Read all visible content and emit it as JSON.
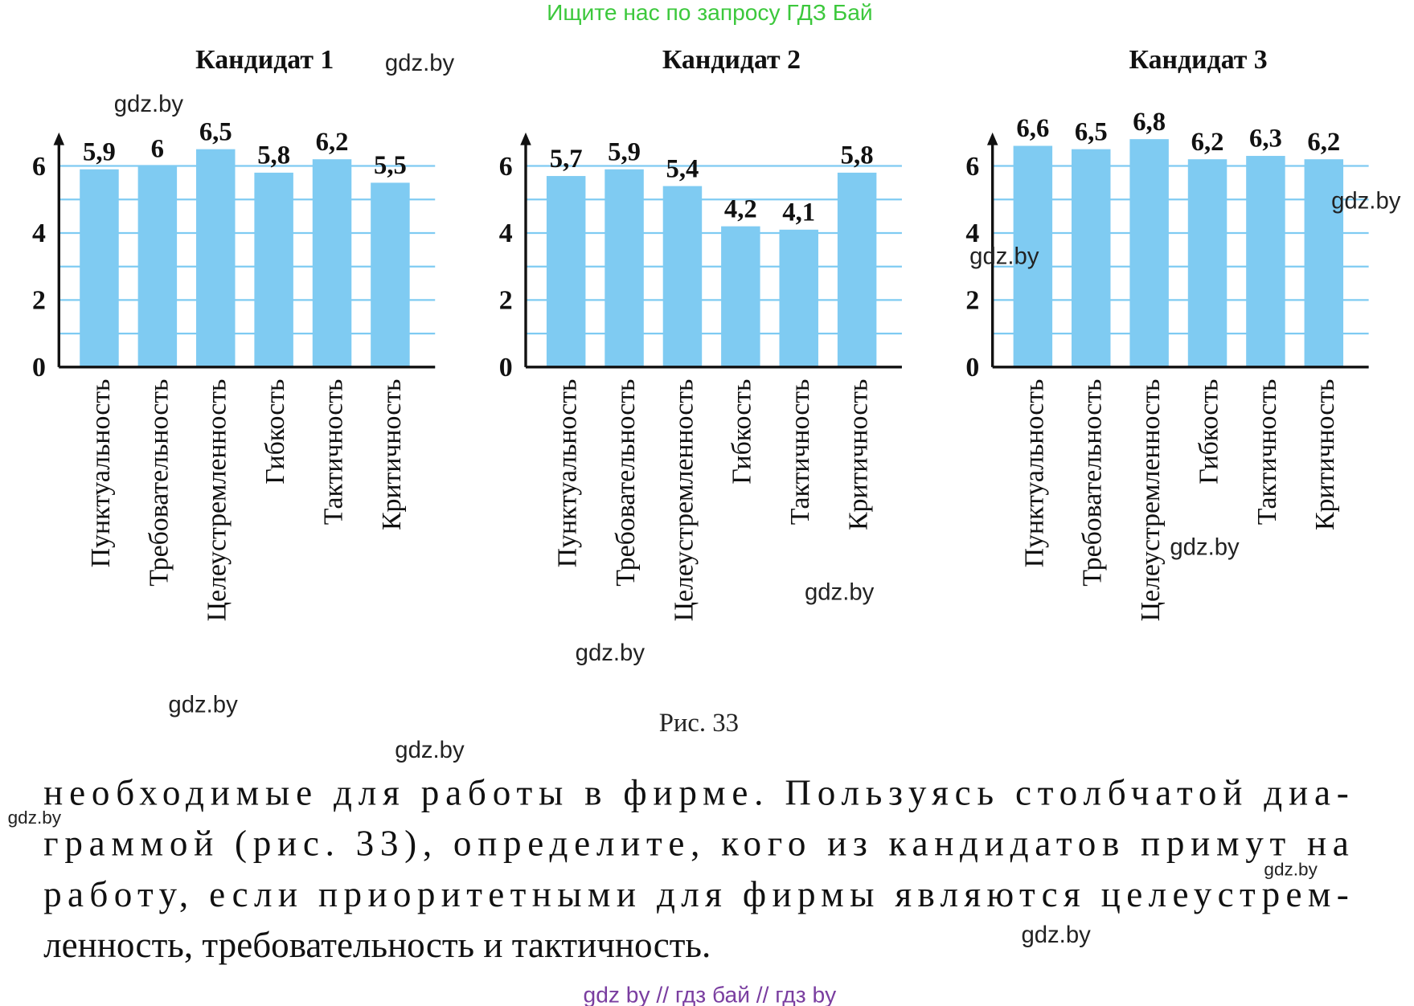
{
  "header": "Ищите нас по запросу ГДЗ Бай",
  "chart_data": [
    {
      "type": "bar",
      "title": "Кандидат 1",
      "categories": [
        "Пунктуальность",
        "Требовательность",
        "Целеустремленность",
        "Гибкость",
        "Тактичность",
        "Критичность"
      ],
      "values": [
        5.9,
        6,
        6.5,
        5.8,
        6.2,
        5.5
      ],
      "value_labels": [
        "5,9",
        "6",
        "6,5",
        "5,8",
        "6,2",
        "5,5"
      ],
      "color": "#7fcbf2",
      "ylim": [
        0,
        7
      ],
      "yticks": [
        0,
        2,
        4,
        6
      ],
      "minor_yticks": [
        1,
        3,
        5
      ],
      "grid": true
    },
    {
      "type": "bar",
      "title": "Кандидат 2",
      "categories": [
        "Пунктуальность",
        "Требовательность",
        "Целеустремленность",
        "Гибкость",
        "Тактичность",
        "Критичность"
      ],
      "values": [
        5.7,
        5.9,
        5.4,
        4.2,
        4.1,
        5.8
      ],
      "value_labels": [
        "5,7",
        "5,9",
        "5,4",
        "4,2",
        "4,1",
        "5,8"
      ],
      "color": "#7fcbf2",
      "ylim": [
        0,
        7
      ],
      "yticks": [
        0,
        2,
        4,
        6
      ],
      "minor_yticks": [
        1,
        3,
        5
      ],
      "grid": true
    },
    {
      "type": "bar",
      "title": "Кандидат 3",
      "categories": [
        "Пунктуальность",
        "Требовательность",
        "Целеустремленность",
        "Гибкость",
        "Тактичность",
        "Критичность"
      ],
      "values": [
        6.6,
        6.5,
        6.8,
        6.2,
        6.3,
        6.2
      ],
      "value_labels": [
        "6,6",
        "6,5",
        "6,8",
        "6,2",
        "6,3",
        "6,2"
      ],
      "color": "#7fcbf2",
      "ylim": [
        0,
        7
      ],
      "yticks": [
        0,
        2,
        4,
        6
      ],
      "minor_yticks": [
        1,
        3,
        5
      ],
      "grid": true
    }
  ],
  "caption": "Рис. 33",
  "paragraph": [
    "необходимые для работы в фирме. Пользуясь столбчатой диа-",
    "граммой (рис. 33), определите, кого из кандидатов примут на",
    "работу, если приоритетными для фирмы являются целеустрем-",
    "ленность, требовательность и тактичность."
  ],
  "watermarks": [
    "gdz.by",
    "gdz.by",
    "gdz.by",
    "gdz.by",
    "gdz.by",
    "gdz.by",
    "gdz.by",
    "gdz.by",
    "gdz.by",
    "gdz.by",
    "gdz.by",
    "gdz.by"
  ],
  "footer": "gdz by  //  гдз бай  //  гдз by"
}
